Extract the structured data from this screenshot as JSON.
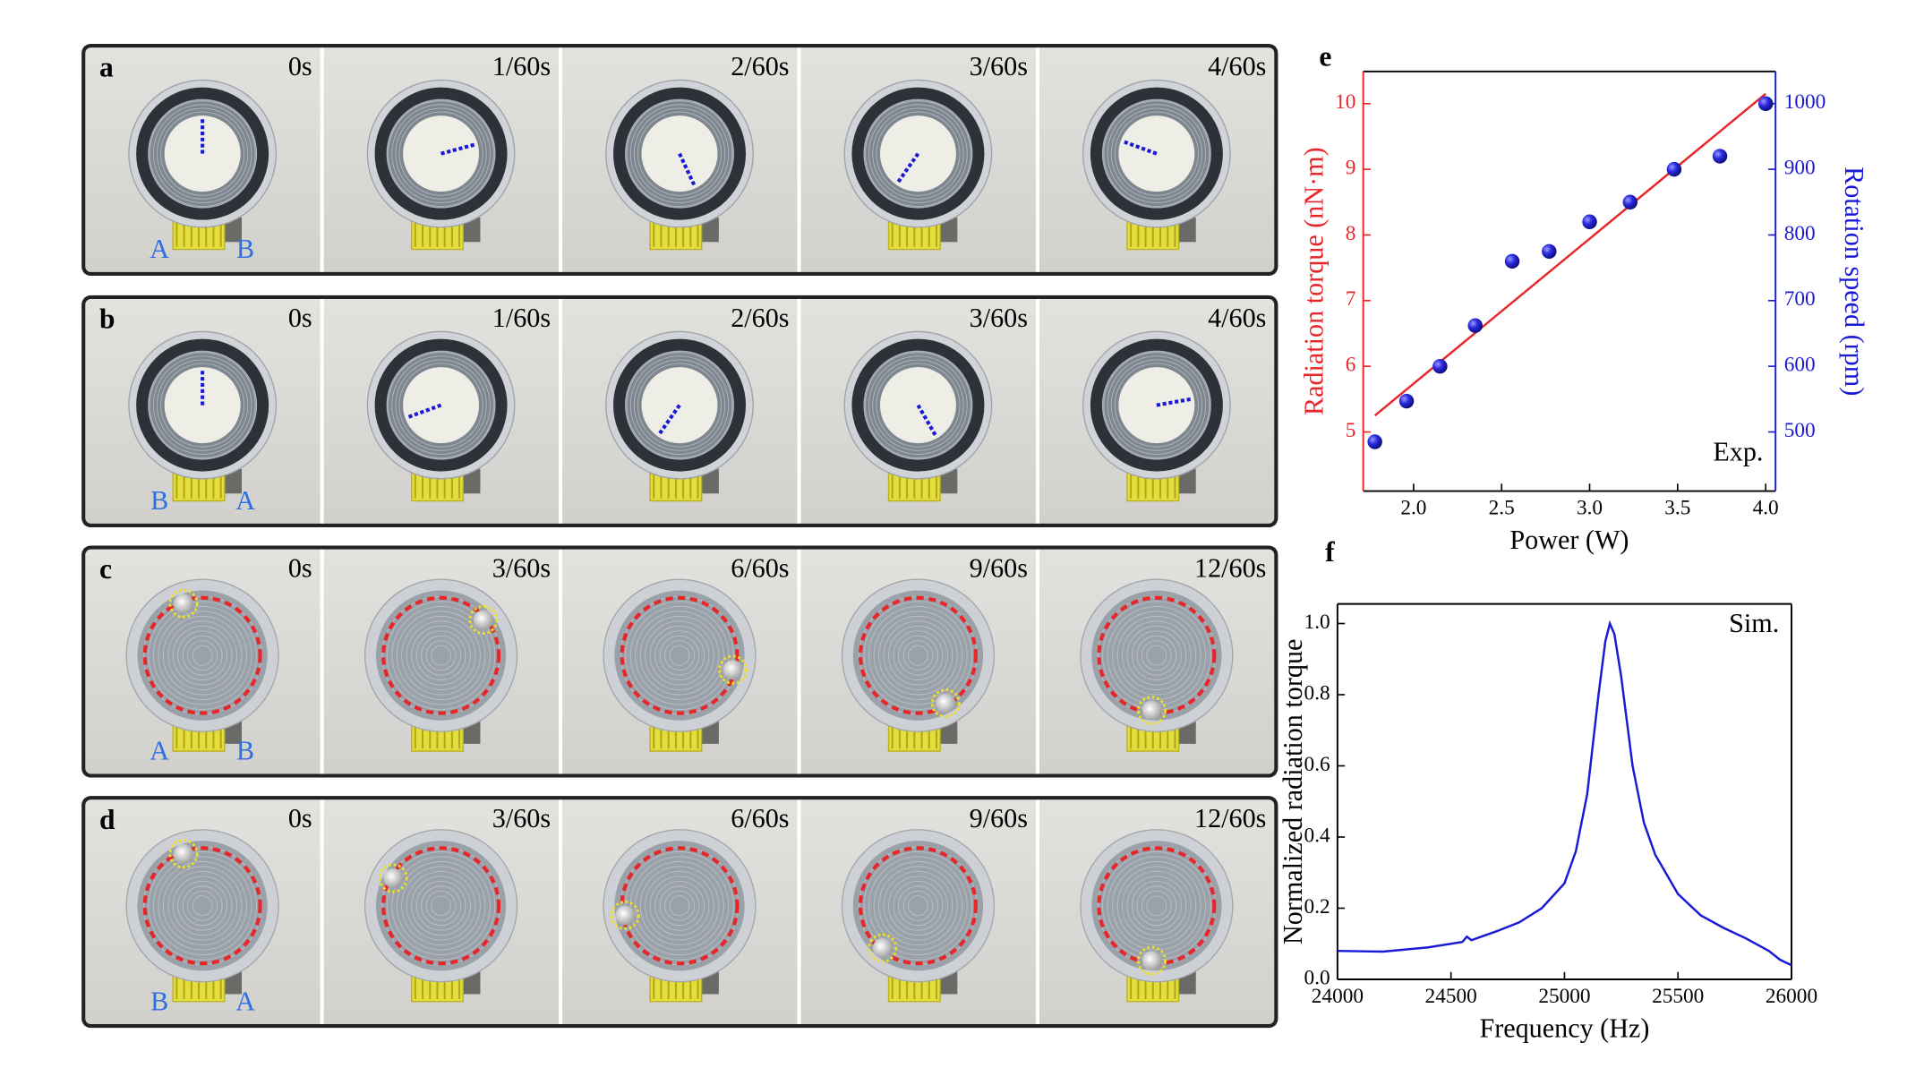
{
  "panels": [
    {
      "label": "a",
      "frames": [
        "0s",
        "1/60s",
        "2/60s",
        "3/60s",
        "4/60s"
      ],
      "ports": [
        "A",
        "B"
      ]
    },
    {
      "label": "b",
      "frames": [
        "0s",
        "1/60s",
        "2/60s",
        "3/60s",
        "4/60s"
      ],
      "ports": [
        "B",
        "A"
      ]
    },
    {
      "label": "c",
      "frames": [
        "0s",
        "3/60s",
        "6/60s",
        "9/60s",
        "12/60s"
      ],
      "ports": [
        "A",
        "B"
      ]
    },
    {
      "label": "d",
      "frames": [
        "0s",
        "3/60s",
        "6/60s",
        "9/60s",
        "12/60s"
      ],
      "ports": [
        "B",
        "A"
      ]
    }
  ],
  "chart_data": [
    {
      "type": "scatter",
      "panel_label": "e",
      "annotation": "Exp.",
      "xlabel": "Power (W)",
      "ylabel": "Radiation torque (nN·m)",
      "y2label": "Rotation speed (rpm)",
      "ycolor": "#e8262a",
      "y2color": "#1a1ad6",
      "xlim": [
        1.714,
        4.056
      ],
      "ylim": [
        4.1,
        10.49
      ],
      "y2lim": [
        410,
        1049
      ],
      "xticks": [
        {
          "value": 2,
          "label": "2.0"
        },
        2.5,
        {
          "value": 3,
          "label": "3.0"
        },
        3.5,
        {
          "value": 4,
          "label": "4.0"
        }
      ],
      "yticks": [
        5,
        6,
        7,
        8,
        9,
        10
      ],
      "y2ticks": [
        500,
        600,
        700,
        800,
        900,
        1000
      ],
      "series": [
        {
          "type": "line",
          "color": "#e8262a",
          "x": [
            1.78,
            4.0
          ],
          "values": [
            5.25,
            10.15
          ]
        },
        {
          "type": "scatter",
          "axis": "y2",
          "color": "#1a1ad6",
          "x": [
            1.78,
            1.96,
            2.15,
            2.35,
            2.56,
            2.77,
            3.0,
            3.23,
            3.48,
            3.74,
            4.0
          ],
          "values": [
            485,
            547,
            600,
            662,
            760,
            775,
            820,
            850,
            900,
            920,
            1000
          ]
        }
      ]
    },
    {
      "type": "line",
      "panel_label": "f",
      "annotation": "Sim.",
      "xlabel": "Frequency (Hz)",
      "ylabel": "Normalized radiation torque",
      "xlim": [
        24000,
        26000
      ],
      "ylim": [
        0,
        1.055
      ],
      "xticks": [
        24000,
        24500,
        25000,
        25500,
        26000
      ],
      "yticks": [
        {
          "value": 0,
          "label": "0.0"
        },
        0.2,
        0.4,
        0.6,
        0.8,
        {
          "value": 1,
          "label": "1.0"
        }
      ],
      "series": [
        {
          "type": "line",
          "color": "#1a1ad6",
          "x": [
            24000,
            24200,
            24400,
            24550,
            24570,
            24590,
            24700,
            24800,
            24900,
            25000,
            25050,
            25100,
            25150,
            25180,
            25200,
            25220,
            25250,
            25300,
            25350,
            25400,
            25500,
            25600,
            25700,
            25800,
            25900,
            25950,
            26000
          ],
          "values": [
            0.08,
            0.078,
            0.09,
            0.105,
            0.12,
            0.11,
            0.135,
            0.16,
            0.2,
            0.27,
            0.36,
            0.52,
            0.8,
            0.95,
            1.0,
            0.97,
            0.85,
            0.6,
            0.44,
            0.35,
            0.24,
            0.18,
            0.145,
            0.115,
            0.08,
            0.055,
            0.04
          ]
        }
      ]
    }
  ]
}
